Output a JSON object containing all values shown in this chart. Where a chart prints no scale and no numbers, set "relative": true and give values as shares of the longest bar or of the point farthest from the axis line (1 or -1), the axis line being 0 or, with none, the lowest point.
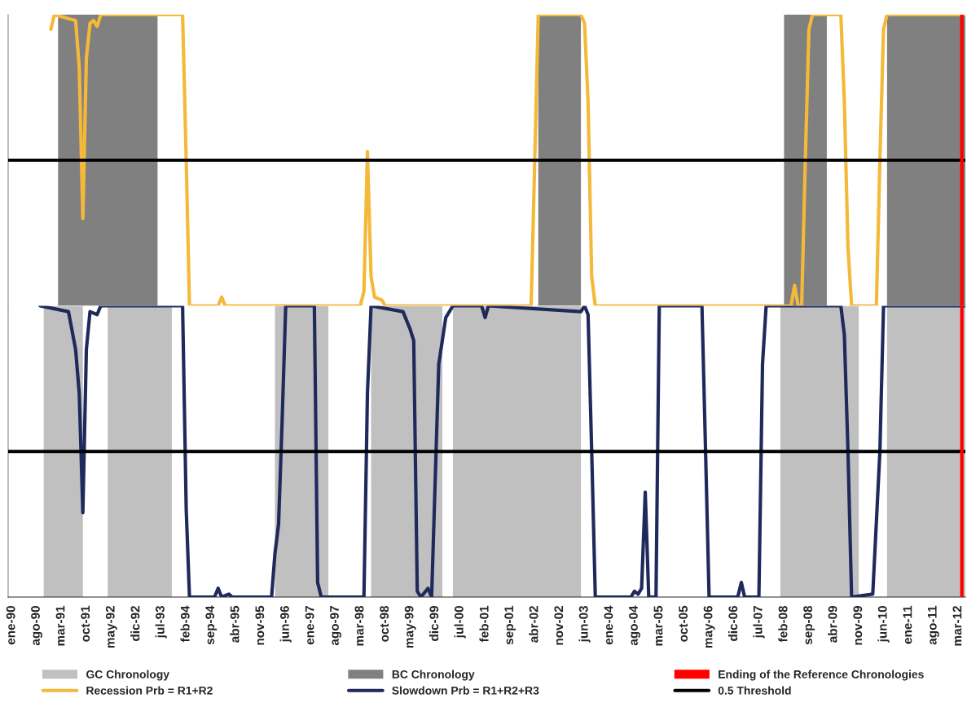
{
  "chart_data": [
    {
      "type": "line",
      "relative": true,
      "tick_labels": false,
      "legend": "bottom",
      "xlim": [
        "1989-12",
        "2012-05"
      ],
      "series": [
        {
          "name": "Recession Prb = R1+R2",
          "color": "#f5b93a",
          "x": [
            "1990-12",
            "1991-01",
            "1991-07",
            "1991-08",
            "1991-09",
            "1991-10",
            "1991-11",
            "1991-12",
            "1992-01",
            "1992-02",
            "1994-01",
            "1994-02",
            "1994-03",
            "1994-11",
            "1994-12",
            "1995-01",
            "1998-03",
            "1998-04",
            "1998-05",
            "1998-06",
            "1998-07",
            "1998-09",
            "1998-10",
            "2002-03",
            "2002-04",
            "2002-05",
            "2003-05",
            "2003-06",
            "2003-07",
            "2003-08",
            "2003-09",
            "2008-04",
            "2008-05",
            "2008-06",
            "2008-07",
            "2008-08",
            "2008-09",
            "2008-10",
            "2009-06",
            "2009-07",
            "2009-08",
            "2009-09",
            "2010-04",
            "2010-05",
            "2010-06",
            "2010-07",
            "2012-05"
          ],
          "values": [
            0.95,
            1,
            0.98,
            0.82,
            0.3,
            0.85,
            0.97,
            0.98,
            0.96,
            1,
            1,
            0.5,
            0,
            0,
            0.03,
            0,
            0,
            0.05,
            0.53,
            0.1,
            0.03,
            0.02,
            0,
            0,
            0.5,
            1,
            1,
            0.97,
            0.7,
            0.1,
            0,
            0,
            0.07,
            0,
            0,
            0.5,
            0.95,
            1,
            1,
            0.7,
            0.2,
            0,
            0,
            0.5,
            0.95,
            1,
            1
          ]
        }
      ],
      "bands": [
        {
          "axis": "x",
          "from": "1991-02",
          "to": "1993-06",
          "label": "BC Chronology",
          "color": "#808080"
        },
        {
          "axis": "x",
          "from": "2002-05",
          "to": "2003-05",
          "color": "#808080"
        },
        {
          "axis": "x",
          "from": "2008-02",
          "to": "2009-02",
          "color": "#808080"
        },
        {
          "axis": "x",
          "from": "2010-07",
          "to": "2012-05",
          "color": "#808080"
        }
      ],
      "ref_lines": [
        {
          "axis": "y",
          "value": 0.5,
          "color": "#000000"
        },
        {
          "axis": "x",
          "value": "2012-04",
          "color": "#ff0000"
        }
      ]
    },
    {
      "type": "line",
      "relative": true,
      "tick_labels": "x",
      "legend": "bottom",
      "xlim": [
        "1989-12",
        "2012-05"
      ],
      "xticks": [
        {
          "value": "1990-01",
          "label": "ene-90"
        },
        {
          "value": "1990-08",
          "label": "ago-90"
        },
        {
          "value": "1991-03",
          "label": "mar-91"
        },
        {
          "value": "1991-10",
          "label": "oct-91"
        },
        {
          "value": "1992-05",
          "label": "may-92"
        },
        {
          "value": "1992-12",
          "label": "dic-92"
        },
        {
          "value": "1993-07",
          "label": "jul-93"
        },
        {
          "value": "1994-02",
          "label": "feb-94"
        },
        {
          "value": "1994-09",
          "label": "sep-94"
        },
        {
          "value": "1995-04",
          "label": "abr-95"
        },
        {
          "value": "1995-11",
          "label": "nov-95"
        },
        {
          "value": "1996-06",
          "label": "jun-96"
        },
        {
          "value": "1997-01",
          "label": "ene-97"
        },
        {
          "value": "1997-08",
          "label": "ago-97"
        },
        {
          "value": "1998-03",
          "label": "mar-98"
        },
        {
          "value": "1998-10",
          "label": "oct-98"
        },
        {
          "value": "1999-05",
          "label": "may-99"
        },
        {
          "value": "1999-12",
          "label": "dic-99"
        },
        {
          "value": "2000-07",
          "label": "jul-00"
        },
        {
          "value": "2001-02",
          "label": "feb-01"
        },
        {
          "value": "2001-09",
          "label": "sep-01"
        },
        {
          "value": "2002-04",
          "label": "abr-02"
        },
        {
          "value": "2002-11",
          "label": "nov-02"
        },
        {
          "value": "2003-06",
          "label": "jun-03"
        },
        {
          "value": "2004-01",
          "label": "ene-04"
        },
        {
          "value": "2004-08",
          "label": "ago-04"
        },
        {
          "value": "2005-03",
          "label": "mar-05"
        },
        {
          "value": "2005-10",
          "label": "oct-05"
        },
        {
          "value": "2006-05",
          "label": "may-06"
        },
        {
          "value": "2006-12",
          "label": "dic-06"
        },
        {
          "value": "2007-07",
          "label": "jul-07"
        },
        {
          "value": "2008-02",
          "label": "feb-08"
        },
        {
          "value": "2008-09",
          "label": "sep-08"
        },
        {
          "value": "2009-04",
          "label": "abr-09"
        },
        {
          "value": "2009-11",
          "label": "nov-09"
        },
        {
          "value": "2010-06",
          "label": "jun-10"
        },
        {
          "value": "2011-01",
          "label": "ene-11"
        },
        {
          "value": "2011-08",
          "label": "ago-11"
        },
        {
          "value": "2012-03",
          "label": "mar-12"
        }
      ],
      "series": [
        {
          "name": "Slowdown Prb = R1+R2+R3",
          "color": "#1f2a5c",
          "x": [
            "1990-09",
            "1991-05",
            "1991-07",
            "1991-08",
            "1991-09",
            "1991-10",
            "1991-11",
            "1992-01",
            "1992-02",
            "1994-01",
            "1994-02",
            "1994-03",
            "1994-10",
            "1994-11",
            "1994-12",
            "1995-02",
            "1995-03",
            "1996-02",
            "1996-03",
            "1996-04",
            "1996-05",
            "1996-06",
            "1997-02",
            "1997-03",
            "1997-04",
            "1998-04",
            "1998-05",
            "1998-06",
            "1999-03",
            "1999-05",
            "1999-06",
            "1999-07",
            "1999-08",
            "1999-10",
            "1999-11",
            "2000-01",
            "2000-03",
            "2000-05",
            "2001-01",
            "2001-02",
            "2001-03",
            "2003-05",
            "2003-06",
            "2003-07",
            "2003-08",
            "2003-09",
            "2004-07",
            "2004-08",
            "2004-09",
            "2004-10",
            "2004-11",
            "2004-12",
            "2005-02",
            "2005-03",
            "2006-03",
            "2006-04",
            "2006-05",
            "2007-01",
            "2007-02",
            "2007-03",
            "2007-07",
            "2007-08",
            "2007-09",
            "2009-06",
            "2009-07",
            "2009-08",
            "2009-09",
            "2010-03",
            "2010-05",
            "2010-06",
            "2012-05"
          ],
          "values": [
            1,
            0.98,
            0.85,
            0.7,
            0.29,
            0.85,
            0.98,
            0.97,
            1,
            1,
            0.3,
            0,
            0,
            0.03,
            0,
            0.01,
            0,
            0,
            0.15,
            0.25,
            0.6,
            1,
            1,
            0.05,
            0,
            0,
            0.7,
            1,
            0.98,
            0.92,
            0.88,
            0.02,
            0,
            0.03,
            0,
            0.8,
            0.96,
            1,
            1,
            0.96,
            1,
            0.98,
            1,
            0.97,
            0.5,
            0,
            0,
            0.02,
            0.01,
            0.03,
            0.36,
            0,
            0,
            1,
            1,
            0.5,
            0,
            0,
            0.05,
            0,
            0,
            0.8,
            1,
            1,
            0.9,
            0.5,
            0,
            0.01,
            0.5,
            1,
            1
          ]
        }
      ],
      "bands": [
        {
          "axis": "x",
          "from": "1990-10",
          "to": "1991-09",
          "label": "GC Chronology",
          "color": "#c0c0c0"
        },
        {
          "axis": "x",
          "from": "1992-04",
          "to": "1993-10",
          "color": "#c0c0c0"
        },
        {
          "axis": "x",
          "from": "1996-03",
          "to": "1997-06",
          "color": "#c0c0c0"
        },
        {
          "axis": "x",
          "from": "1998-06",
          "to": "2000-02",
          "color": "#c0c0c0"
        },
        {
          "axis": "x",
          "from": "2000-05",
          "to": "2003-05",
          "color": "#c0c0c0"
        },
        {
          "axis": "x",
          "from": "2008-01",
          "to": "2009-11",
          "color": "#c0c0c0"
        },
        {
          "axis": "x",
          "from": "2010-07",
          "to": "2012-05",
          "color": "#c0c0c0"
        }
      ],
      "ref_lines": [
        {
          "axis": "y",
          "value": 0.5,
          "label": "0.5 Threshold",
          "color": "#000000"
        },
        {
          "axis": "x",
          "value": "2012-04",
          "label": "Ending of the Reference Chronologies",
          "color": "#ff0000"
        }
      ]
    }
  ]
}
